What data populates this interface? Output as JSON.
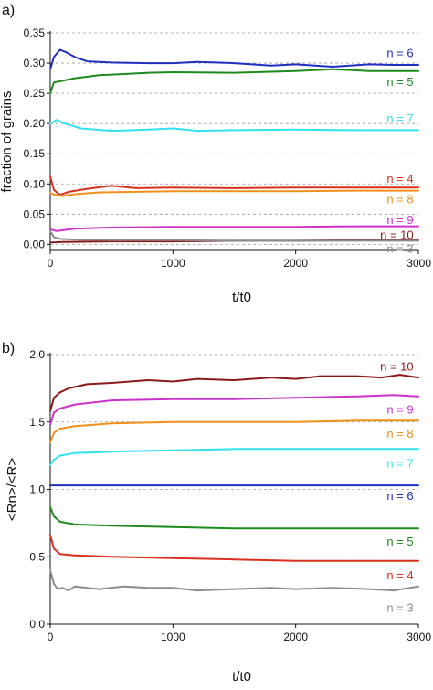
{
  "chart_data": [
    {
      "type": "line",
      "panel_label": "a)",
      "xlabel": "t/t0",
      "ylabel": "fraction of grains",
      "xlim": [
        0,
        3000
      ],
      "ylim": [
        -0.01,
        0.35
      ],
      "x_ticks": [
        0,
        1000,
        2000,
        3000
      ],
      "y_ticks": [
        0.0,
        0.05,
        0.1,
        0.15,
        0.2,
        0.25,
        0.3,
        0.35
      ],
      "y_tick_labels": [
        "0.00",
        "0.05",
        "0.10",
        "0.15",
        "0.20",
        "0.25",
        "0.30",
        "0.35"
      ],
      "grid": "horizontal dashed",
      "series": [
        {
          "name": "n = 6",
          "color": "#1f2fc0",
          "label_x": 2960,
          "label_y": 0.316,
          "x": [
            0,
            30,
            80,
            130,
            200,
            300,
            500,
            800,
            1000,
            1200,
            1500,
            1800,
            2000,
            2300,
            2600,
            2800,
            3000
          ],
          "y": [
            0.29,
            0.31,
            0.322,
            0.318,
            0.31,
            0.303,
            0.301,
            0.3,
            0.3,
            0.302,
            0.3,
            0.296,
            0.298,
            0.294,
            0.298,
            0.297,
            0.297
          ]
        },
        {
          "name": "n = 5",
          "color": "#1e8a1e",
          "label_x": 2960,
          "label_y": 0.268,
          "x": [
            0,
            30,
            80,
            200,
            400,
            600,
            800,
            1000,
            1500,
            2000,
            2300,
            2600,
            3000
          ],
          "y": [
            0.25,
            0.268,
            0.27,
            0.275,
            0.28,
            0.282,
            0.284,
            0.285,
            0.284,
            0.287,
            0.29,
            0.287,
            0.287
          ]
        },
        {
          "name": "n = 7",
          "color": "#33e0f0",
          "label_x": 2960,
          "label_y": 0.208,
          "x": [
            0,
            50,
            120,
            250,
            500,
            800,
            1000,
            1200,
            1500,
            2000,
            2500,
            3000
          ],
          "y": [
            0.2,
            0.206,
            0.2,
            0.192,
            0.188,
            0.19,
            0.192,
            0.188,
            0.189,
            0.19,
            0.189,
            0.189
          ]
        },
        {
          "name": "n = 4",
          "color": "#d8301c",
          "label_x": 2960,
          "label_y": 0.108,
          "x": [
            0,
            30,
            80,
            150,
            300,
            500,
            700,
            1000,
            1500,
            2000,
            2500,
            3000
          ],
          "y": [
            0.112,
            0.09,
            0.082,
            0.087,
            0.092,
            0.097,
            0.093,
            0.094,
            0.093,
            0.094,
            0.094,
            0.094
          ]
        },
        {
          "name": "n = 8",
          "color": "#f0901c",
          "label_x": 2960,
          "label_y": 0.074,
          "x": [
            0,
            40,
            100,
            200,
            400,
            700,
            1000,
            1500,
            2000,
            2500,
            3000
          ],
          "y": [
            0.085,
            0.082,
            0.08,
            0.083,
            0.086,
            0.087,
            0.088,
            0.088,
            0.088,
            0.089,
            0.089
          ]
        },
        {
          "name": "n = 9",
          "color": "#cc33cc",
          "label_x": 2960,
          "label_y": 0.04,
          "x": [
            0,
            50,
            200,
            500,
            1000,
            1500,
            2000,
            2500,
            3000
          ],
          "y": [
            0.025,
            0.022,
            0.026,
            0.028,
            0.029,
            0.029,
            0.029,
            0.03,
            0.03
          ]
        },
        {
          "name": "n = 10",
          "color": "#8a1a1a",
          "label_x": 2960,
          "label_y": 0.015,
          "x": [
            0,
            100,
            500,
            1000,
            1500,
            2000,
            2500,
            3000
          ],
          "y": [
            0.003,
            0.004,
            0.005,
            0.005,
            0.006,
            0.006,
            0.007,
            0.007
          ]
        },
        {
          "name": "n = 3",
          "color": "#8c8c8c",
          "label_x": 2960,
          "label_y": -0.008,
          "x": [
            0,
            30,
            80,
            200,
            500,
            1000,
            1500,
            2000,
            2500,
            3000
          ],
          "y": [
            0.022,
            0.012,
            0.009,
            0.008,
            0.007,
            0.007,
            0.006,
            0.006,
            0.006,
            0.006
          ]
        }
      ]
    },
    {
      "type": "line",
      "panel_label": "b)",
      "xlabel": "t/t0",
      "ylabel": "<Rn>/<R>",
      "xlim": [
        0,
        3000
      ],
      "ylim": [
        0.0,
        2.0
      ],
      "x_ticks": [
        0,
        1000,
        2000,
        3000
      ],
      "y_ticks": [
        0.0,
        0.5,
        1.0,
        1.5,
        2.0
      ],
      "y_tick_labels": [
        "0.0",
        "0.5",
        "1.0",
        "1.5",
        "2.0"
      ],
      "grid": "horizontal dashed",
      "series": [
        {
          "name": "n = 10",
          "color": "#8a1a1a",
          "label_x": 2960,
          "label_y": 1.91,
          "x": [
            0,
            30,
            80,
            150,
            300,
            500,
            800,
            1000,
            1200,
            1500,
            1800,
            2000,
            2200,
            2500,
            2700,
            2850,
            3000
          ],
          "y": [
            1.58,
            1.68,
            1.72,
            1.75,
            1.78,
            1.79,
            1.81,
            1.8,
            1.82,
            1.81,
            1.83,
            1.82,
            1.84,
            1.84,
            1.83,
            1.85,
            1.83
          ]
        },
        {
          "name": "n = 9",
          "color": "#cc33cc",
          "label_x": 2960,
          "label_y": 1.59,
          "x": [
            0,
            30,
            80,
            200,
            500,
            1000,
            1500,
            2000,
            2500,
            2800,
            3000
          ],
          "y": [
            1.48,
            1.57,
            1.6,
            1.63,
            1.66,
            1.67,
            1.67,
            1.68,
            1.69,
            1.7,
            1.69
          ]
        },
        {
          "name": "n = 8",
          "color": "#f0901c",
          "label_x": 2960,
          "label_y": 1.41,
          "x": [
            0,
            30,
            80,
            200,
            500,
            1000,
            1500,
            2000,
            2500,
            3000
          ],
          "y": [
            1.35,
            1.42,
            1.45,
            1.47,
            1.49,
            1.5,
            1.5,
            1.5,
            1.51,
            1.51
          ]
        },
        {
          "name": "n = 7",
          "color": "#33e0f0",
          "label_x": 2960,
          "label_y": 1.19,
          "x": [
            0,
            30,
            80,
            200,
            500,
            1000,
            1500,
            2000,
            2500,
            3000
          ],
          "y": [
            1.18,
            1.22,
            1.25,
            1.27,
            1.28,
            1.29,
            1.3,
            1.3,
            1.3,
            1.3
          ]
        },
        {
          "name": "n = 6",
          "color": "#1f2fc0",
          "label_x": 2960,
          "label_y": 0.95,
          "x": [
            0,
            100,
            500,
            1000,
            1500,
            2000,
            2500,
            3000
          ],
          "y": [
            1.03,
            1.03,
            1.03,
            1.03,
            1.03,
            1.03,
            1.03,
            1.03
          ]
        },
        {
          "name": "n = 5",
          "color": "#1e8a1e",
          "label_x": 2960,
          "label_y": 0.61,
          "x": [
            0,
            30,
            80,
            200,
            500,
            1000,
            1500,
            2000,
            2500,
            3000
          ],
          "y": [
            0.87,
            0.8,
            0.76,
            0.74,
            0.73,
            0.72,
            0.71,
            0.71,
            0.71,
            0.71
          ]
        },
        {
          "name": "n = 4",
          "color": "#d8301c",
          "label_x": 2960,
          "label_y": 0.36,
          "x": [
            0,
            30,
            80,
            200,
            500,
            1000,
            1500,
            2000,
            2500,
            3000
          ],
          "y": [
            0.66,
            0.56,
            0.52,
            0.51,
            0.5,
            0.49,
            0.48,
            0.47,
            0.47,
            0.47
          ]
        },
        {
          "name": "n = 3",
          "color": "#8c8c8c",
          "label_x": 2960,
          "label_y": 0.12,
          "x": [
            0,
            30,
            60,
            100,
            150,
            200,
            300,
            400,
            600,
            800,
            1000,
            1200,
            1500,
            1800,
            2000,
            2300,
            2600,
            2800,
            3000
          ],
          "y": [
            0.4,
            0.3,
            0.26,
            0.27,
            0.25,
            0.28,
            0.27,
            0.26,
            0.28,
            0.27,
            0.27,
            0.25,
            0.26,
            0.27,
            0.26,
            0.27,
            0.26,
            0.25,
            0.28
          ]
        }
      ]
    }
  ]
}
